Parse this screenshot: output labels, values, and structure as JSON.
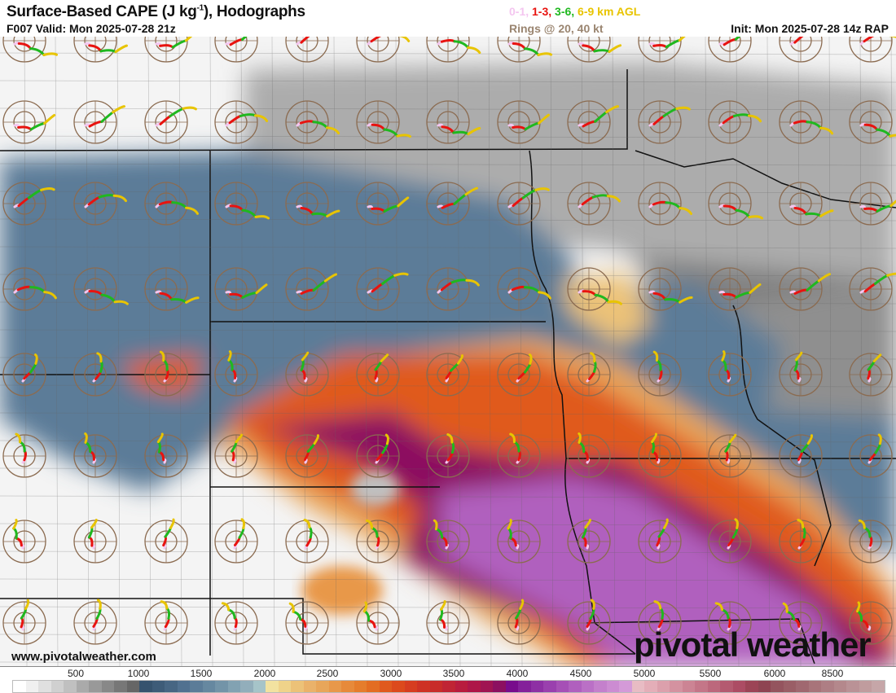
{
  "header": {
    "title_main": "Surface-Based CAPE (J kg",
    "title_sup": "-1",
    "title_end": "), Hodographs",
    "valid": "F007 Valid: Mon 2025-07-28 21z",
    "layers": [
      {
        "label": "0-1,",
        "color": "#f4c6f0"
      },
      {
        "label": "1-3,",
        "color": "#e8130f"
      },
      {
        "label": "3-6,",
        "color": "#1fb81f"
      },
      {
        "label": "6-9 km AGL",
        "color": "#e8c400"
      }
    ],
    "rings": "Rings @ 20, 40 kt",
    "init": "Init: Mon 2025-07-28 14z RAP"
  },
  "branding": {
    "site": "www.pivotalweather.com",
    "logo": "pivotal weather"
  },
  "colorbar": {
    "labels": [
      "500",
      "1000",
      "1500",
      "2000",
      "2500",
      "3000",
      "3500",
      "4000",
      "4500",
      "5000",
      "5500",
      "6000",
      "8500"
    ],
    "colors": [
      "#ffffff",
      "#f0f0f0",
      "#e0e0e0",
      "#d0d0d0",
      "#c0c0c0",
      "#aaaaaa",
      "#999999",
      "#888888",
      "#777777",
      "#666666",
      "#36536e",
      "#3e5c78",
      "#476683",
      "#517190",
      "#5b7c98",
      "#6688a0",
      "#7394a8",
      "#82a2b2",
      "#92aebb",
      "#a6c4c9",
      "#f2e2a0",
      "#efd38a",
      "#ecc278",
      "#eab26a",
      "#e8a65a",
      "#e8984a",
      "#e78a3a",
      "#e57d2c",
      "#e36d22",
      "#e05a1e",
      "#dc4a1c",
      "#d63d20",
      "#ce3224",
      "#c82c2a",
      "#c02434",
      "#b81c3e",
      "#ae1648",
      "#a01452",
      "#8c1060",
      "#780c8c",
      "#84209a",
      "#8e30a4",
      "#9a40ae",
      "#a650b6",
      "#b060be",
      "#ba70c6",
      "#c480cc",
      "#cc8cd2",
      "#d49ad8",
      "#e8bcc4",
      "#e4aeb8",
      "#dca0ac",
      "#d492a0",
      "#cc8494",
      "#c47688",
      "#bc687c",
      "#b45a70",
      "#ac4c64",
      "#9c4456",
      "#8e4452",
      "#94545e",
      "#9a5e66",
      "#a06870",
      "#a8747a",
      "#ae7e84",
      "#b4888c",
      "#ba9296",
      "#c09c9e",
      "#c6a6a8"
    ]
  },
  "map_colors": {
    "low": "#d8d8d8",
    "blue": "#5b7c98",
    "orange": "#e36d22",
    "purple": "#9a40ae",
    "ring": "#8b6b50",
    "border": "#111111"
  }
}
